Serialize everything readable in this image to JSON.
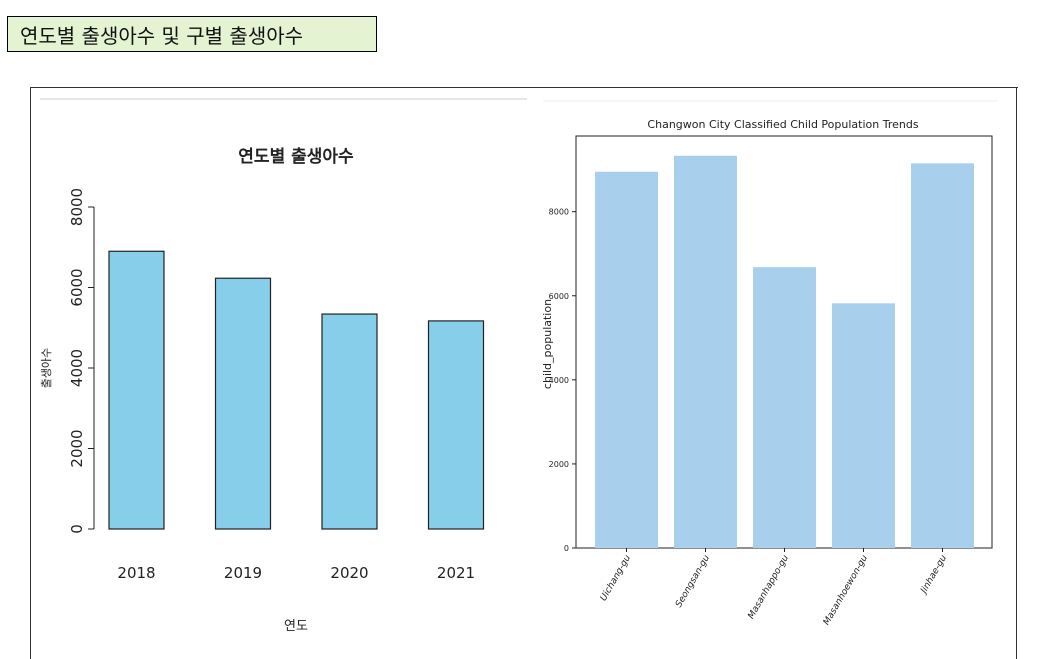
{
  "heading": "연도별 출생아수 및 구별 출생아수",
  "chart_data": [
    {
      "type": "bar",
      "title": "연도별 출생아수",
      "xlabel": "연도",
      "ylabel": "출생아수",
      "categories": [
        "2018",
        "2019",
        "2020",
        "2021"
      ],
      "values": [
        6900,
        6230,
        5340,
        5170
      ],
      "ylim": [
        0,
        8000
      ],
      "yticks": [
        "0",
        "2000",
        "4000",
        "6000",
        "8000"
      ],
      "bar_color": "#87ceeb",
      "grid": false
    },
    {
      "type": "bar",
      "title": "Changwon City Classified Child Population Trends",
      "xlabel": "",
      "ylabel": "child_population",
      "categories": [
        "Uichang-gu",
        "Seongsan-gu",
        "Masanhappo-gu",
        "Masanhoewon-gu",
        "Jinhae-gu"
      ],
      "values": [
        8950,
        9330,
        6680,
        5820,
        9150
      ],
      "ylim": [
        0,
        9800
      ],
      "yticks": [
        "0",
        "2000",
        "4000",
        "6000",
        "8000"
      ],
      "bar_color": "#a8d0ec",
      "grid": false
    }
  ]
}
